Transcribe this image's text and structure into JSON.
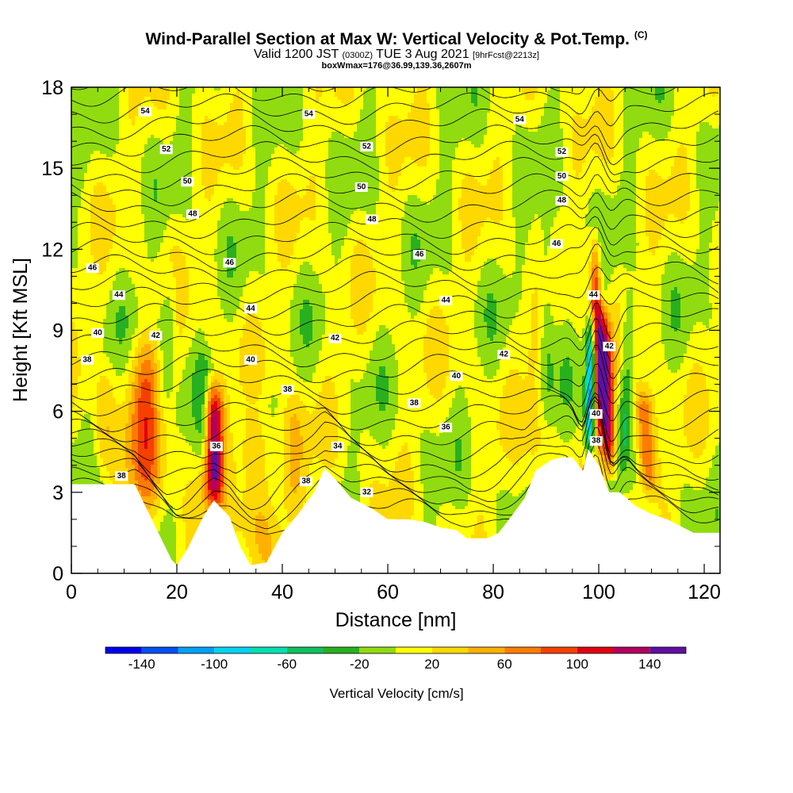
{
  "title": {
    "main": "Wind-Parallel Section at Max W: Vertical Velocity & Pot.Temp.",
    "copyright": "(C)",
    "valid_prefix": "Valid 1200 JST",
    "valid_utc": "(0300Z)",
    "valid_date": "TUE 3 Aug 2021",
    "forecast": "[9hrFcst@2213z]",
    "box": "boxWmax=176@36.99,139.36,2607m"
  },
  "chart_data": {
    "type": "heatmap",
    "xlabel": "Distance [nm]",
    "ylabel": "Height [Kft MSL]",
    "xlim": [
      0,
      123
    ],
    "ylim": [
      0,
      18
    ],
    "x_ticks": [
      "0",
      "20",
      "40",
      "60",
      "80",
      "100",
      "120"
    ],
    "y_ticks": [
      "0",
      "3",
      "6",
      "9",
      "12",
      "15",
      "18"
    ],
    "grid": false,
    "field": "Vertical Velocity [cm/s]",
    "colorbar": {
      "title": "Vertical Velocity [cm/s]",
      "tick_labels": [
        "-140",
        "-100",
        "-60",
        "-20",
        "20",
        "60",
        "100",
        "140"
      ],
      "bins": [
        {
          "from": -160,
          "to": -140,
          "color": "#0000ee"
        },
        {
          "from": -140,
          "to": -120,
          "color": "#0050f0"
        },
        {
          "from": -120,
          "to": -100,
          "color": "#00a0f5"
        },
        {
          "from": -100,
          "to": -80,
          "color": "#00d2f0"
        },
        {
          "from": -80,
          "to": -60,
          "color": "#00e0b0"
        },
        {
          "from": -60,
          "to": -40,
          "color": "#10c060"
        },
        {
          "from": -40,
          "to": -20,
          "color": "#28b020"
        },
        {
          "from": -20,
          "to": 0,
          "color": "#90dc10"
        },
        {
          "from": 0,
          "to": 20,
          "color": "#ffff00"
        },
        {
          "from": 20,
          "to": 40,
          "color": "#ffd800"
        },
        {
          "from": 40,
          "to": 60,
          "color": "#ffb000"
        },
        {
          "from": 60,
          "to": 80,
          "color": "#ff7c00"
        },
        {
          "from": 80,
          "to": 100,
          "color": "#f54000"
        },
        {
          "from": 100,
          "to": 120,
          "color": "#e00010"
        },
        {
          "from": 120,
          "to": 140,
          "color": "#b00060"
        },
        {
          "from": 140,
          "to": 160,
          "color": "#6010a0"
        }
      ]
    },
    "terrain_kft": [
      [
        0,
        3.3
      ],
      [
        12,
        3.3
      ],
      [
        14,
        2.5
      ],
      [
        17,
        1.3
      ],
      [
        19,
        0.5
      ],
      [
        20,
        0.3
      ],
      [
        22,
        0.9
      ],
      [
        25,
        2.1
      ],
      [
        27,
        2.7
      ],
      [
        30,
        2.1
      ],
      [
        32,
        1.0
      ],
      [
        34,
        0.3
      ],
      [
        37,
        0.4
      ],
      [
        40,
        1.5
      ],
      [
        43,
        2.2
      ],
      [
        46,
        3.0
      ],
      [
        48,
        3.9
      ],
      [
        50,
        3.5
      ],
      [
        53,
        2.8
      ],
      [
        57,
        2.4
      ],
      [
        60,
        2.0
      ],
      [
        64,
        2.0
      ],
      [
        67,
        1.9
      ],
      [
        70,
        1.7
      ],
      [
        73,
        1.6
      ],
      [
        75,
        1.3
      ],
      [
        79,
        1.3
      ],
      [
        81,
        1.5
      ],
      [
        83,
        2.0
      ],
      [
        86,
        2.8
      ],
      [
        88,
        3.8
      ],
      [
        91,
        4.2
      ],
      [
        93,
        4.3
      ],
      [
        95,
        4.3
      ],
      [
        97,
        3.8
      ],
      [
        98,
        4.6
      ],
      [
        100,
        4.0
      ],
      [
        102,
        3.0
      ],
      [
        104,
        3.0
      ],
      [
        107,
        2.5
      ],
      [
        110,
        2.2
      ],
      [
        113,
        2.0
      ],
      [
        115,
        1.8
      ],
      [
        118,
        1.5
      ],
      [
        121,
        1.5
      ],
      [
        123,
        1.5
      ]
    ],
    "updrafts": [
      {
        "x": 14,
        "z_bot": 2.0,
        "z_top": 8.5,
        "width": 3.5,
        "peak": 70,
        "tilt": 0.1
      },
      {
        "x": 27,
        "z_bot": 2.6,
        "z_top": 6.9,
        "width": 1.8,
        "peak": 130,
        "tilt": 0.0
      },
      {
        "x": 35,
        "z_bot": 0.6,
        "z_top": 5.5,
        "width": 4.5,
        "peak": 40,
        "tilt": 0.0
      },
      {
        "x": 42,
        "z_bot": 2.5,
        "z_top": 6.5,
        "width": 2.5,
        "peak": 30,
        "tilt": 0.0
      },
      {
        "x": 100,
        "z_bot": 5.0,
        "z_top": 12.2,
        "width": 1.0,
        "peak": 110,
        "tilt": -0.1
      },
      {
        "x": 102,
        "z_bot": 4.0,
        "z_top": 9.5,
        "width": 1.3,
        "peak": 145,
        "tilt": -0.2
      },
      {
        "x": 109.5,
        "z_bot": 3.0,
        "z_top": 6.8,
        "width": 1.8,
        "peak": 95,
        "tilt": -0.3
      },
      {
        "x": 6,
        "z_bot": 4.0,
        "z_top": 7.5,
        "width": 2.0,
        "peak": 30,
        "tilt": 0.0
      },
      {
        "x": 88,
        "z_bot": 3.0,
        "z_top": 10.0,
        "width": 2.0,
        "peak": 25,
        "tilt": 0.0
      }
    ],
    "downdrafts": [
      {
        "x": 98.2,
        "z_bot": 4.5,
        "z_top": 9.2,
        "width": 1.0,
        "peak": -120,
        "tilt": 0.1
      },
      {
        "x": 104.5,
        "z_bot": 4.0,
        "z_top": 10.0,
        "width": 1.3,
        "peak": -50,
        "tilt": 0.2
      },
      {
        "x": 17,
        "z_bot": 6.0,
        "z_top": 11.0,
        "width": 1.6,
        "peak": -35,
        "tilt": 0.4
      },
      {
        "x": 25,
        "z_bot": 4.0,
        "z_top": 8.0,
        "width": 1.3,
        "peak": -30,
        "tilt": 0.0
      },
      {
        "x": 90,
        "z_bot": 6.0,
        "z_top": 13.0,
        "width": 1.6,
        "peak": -35,
        "tilt": 0.0
      }
    ],
    "isentrope_labels": [
      {
        "x": 14,
        "y": 17.1,
        "text": "54"
      },
      {
        "x": 45,
        "y": 17.0,
        "text": "54"
      },
      {
        "x": 85,
        "y": 16.8,
        "text": "54"
      },
      {
        "x": 18,
        "y": 15.7,
        "text": "52"
      },
      {
        "x": 56,
        "y": 15.8,
        "text": "52"
      },
      {
        "x": 93,
        "y": 15.6,
        "text": "52"
      },
      {
        "x": 22,
        "y": 14.5,
        "text": "50"
      },
      {
        "x": 55,
        "y": 14.3,
        "text": "50"
      },
      {
        "x": 93,
        "y": 14.7,
        "text": "50"
      },
      {
        "x": 23,
        "y": 13.3,
        "text": "48"
      },
      {
        "x": 57,
        "y": 13.1,
        "text": "48"
      },
      {
        "x": 93,
        "y": 13.8,
        "text": "48"
      },
      {
        "x": 4,
        "y": 11.3,
        "text": "46"
      },
      {
        "x": 30,
        "y": 11.5,
        "text": "46"
      },
      {
        "x": 66,
        "y": 11.8,
        "text": "46"
      },
      {
        "x": 92,
        "y": 12.2,
        "text": "46"
      },
      {
        "x": 9,
        "y": 10.3,
        "text": "44"
      },
      {
        "x": 34,
        "y": 9.8,
        "text": "44"
      },
      {
        "x": 71,
        "y": 10.1,
        "text": "44"
      },
      {
        "x": 99,
        "y": 10.3,
        "text": "44"
      },
      {
        "x": 5,
        "y": 8.9,
        "text": "40"
      },
      {
        "x": 16,
        "y": 8.8,
        "text": "42"
      },
      {
        "x": 50,
        "y": 8.7,
        "text": "42"
      },
      {
        "x": 82,
        "y": 8.1,
        "text": "42"
      },
      {
        "x": 102,
        "y": 8.4,
        "text": "42"
      },
      {
        "x": 34,
        "y": 7.9,
        "text": "40"
      },
      {
        "x": 73,
        "y": 7.3,
        "text": "40"
      },
      {
        "x": 3,
        "y": 7.9,
        "text": "38"
      },
      {
        "x": 41,
        "y": 6.8,
        "text": "38"
      },
      {
        "x": 65,
        "y": 6.3,
        "text": "38"
      },
      {
        "x": 99.5,
        "y": 5.9,
        "text": "40"
      },
      {
        "x": 71,
        "y": 5.4,
        "text": "36"
      },
      {
        "x": 99.5,
        "y": 4.9,
        "text": "38"
      },
      {
        "x": 27.5,
        "y": 4.7,
        "text": "36"
      },
      {
        "x": 50.5,
        "y": 4.7,
        "text": "34"
      },
      {
        "x": 9.5,
        "y": 3.6,
        "text": "38"
      },
      {
        "x": 44.5,
        "y": 3.4,
        "text": "38"
      },
      {
        "x": 56,
        "y": 3.0,
        "text": "32"
      }
    ]
  }
}
